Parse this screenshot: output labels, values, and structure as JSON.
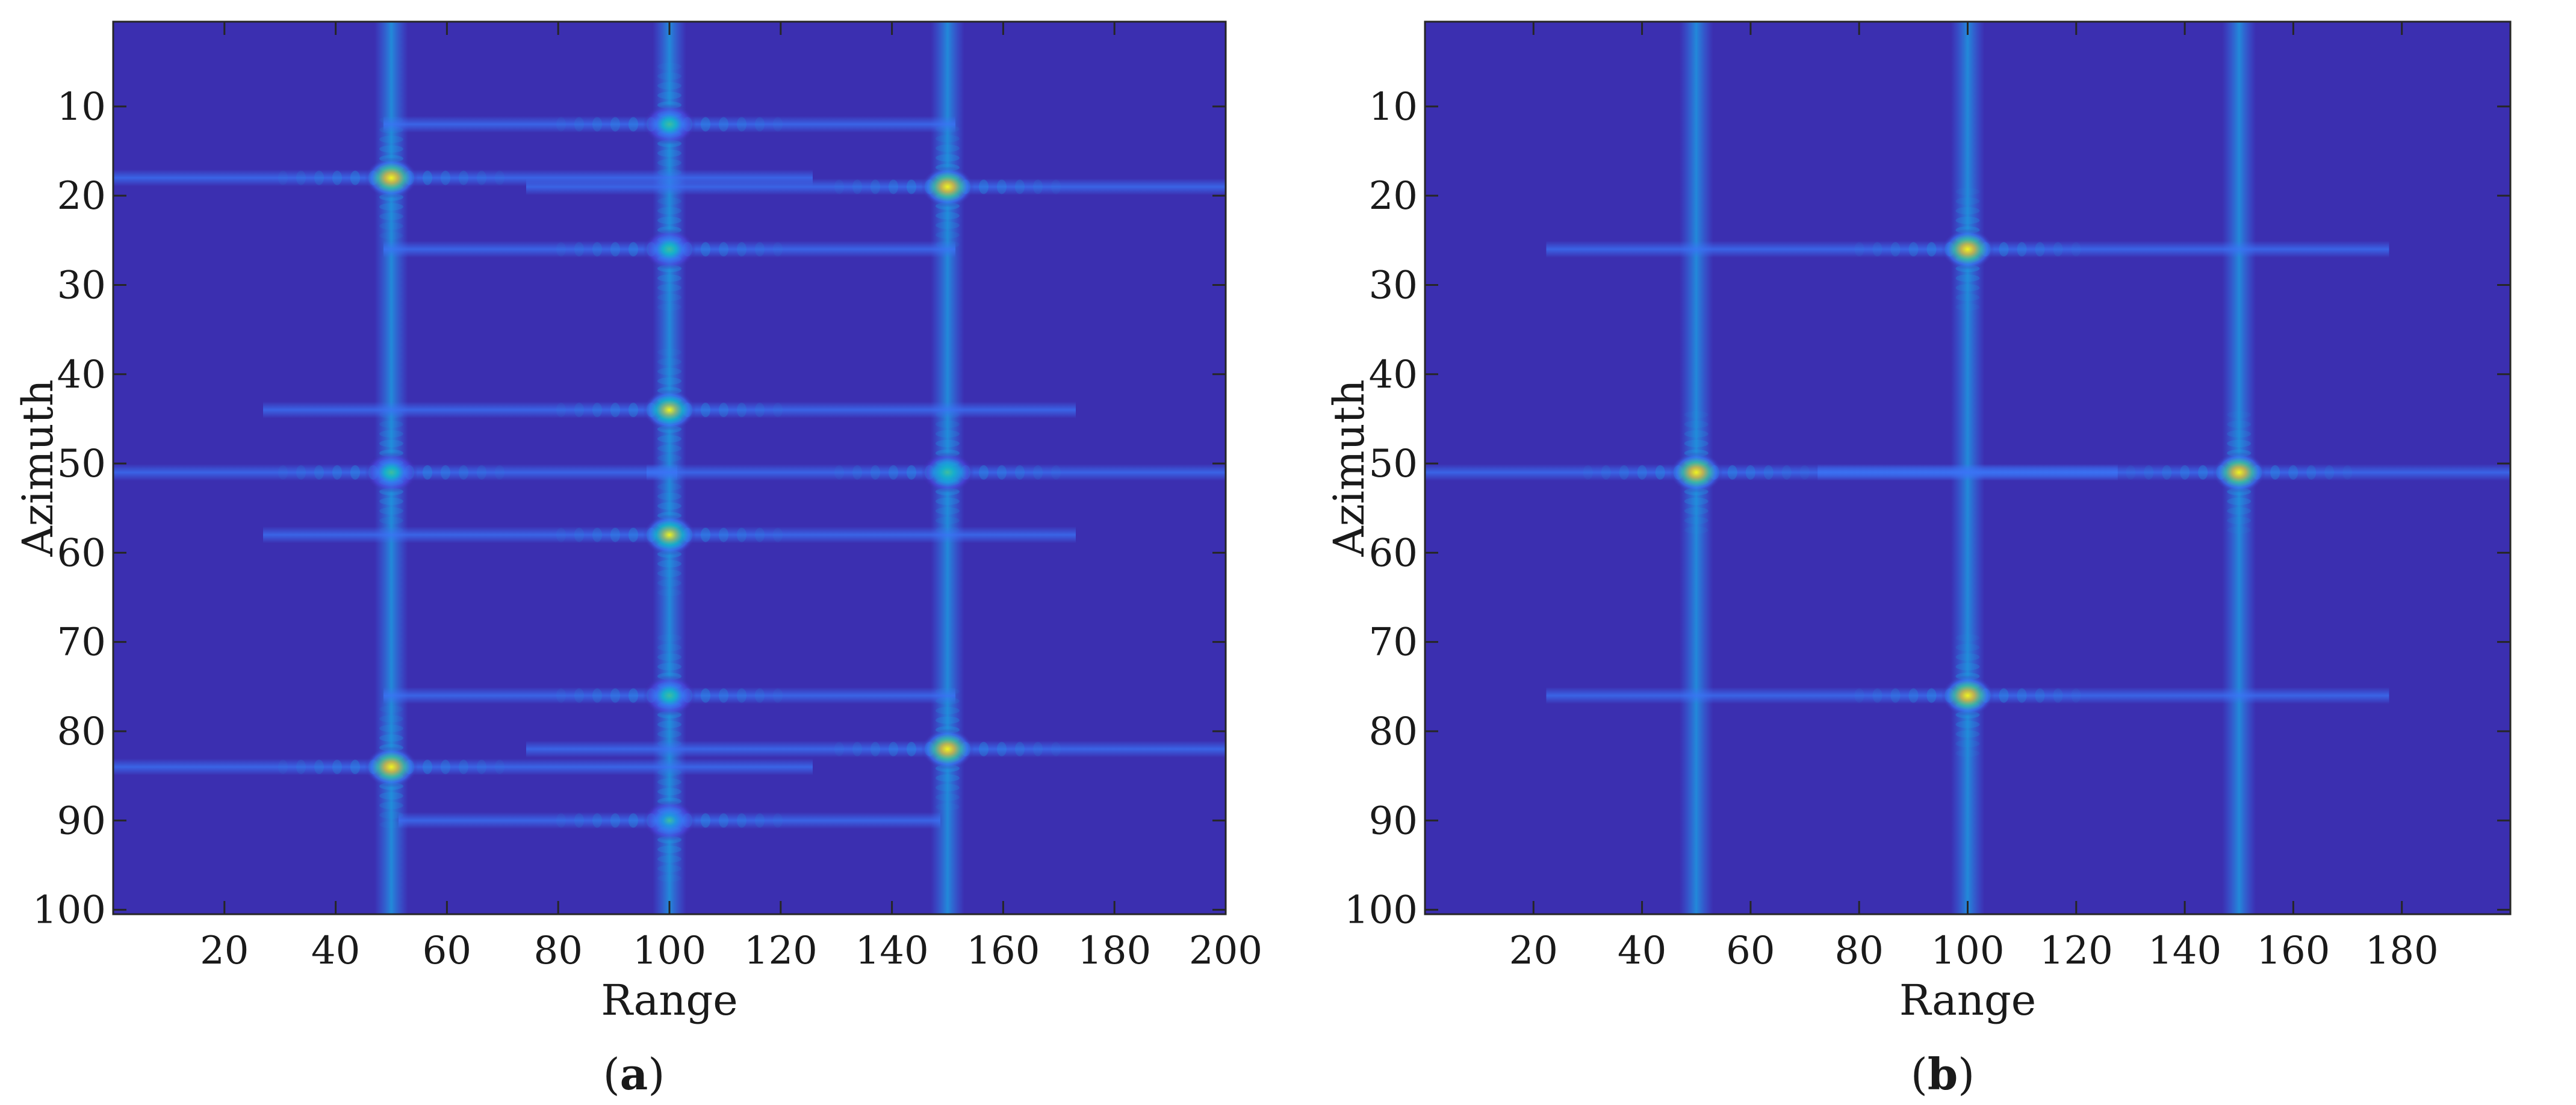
{
  "colors": {
    "background": "#3b2fb0",
    "colormap": [
      "#3e26a8",
      "#4a46e0",
      "#3a74f6",
      "#1d9ae0",
      "#11b8c8",
      "#3ec19b",
      "#92bf6a",
      "#d2bb3d",
      "#fbc731",
      "#f9fb14"
    ]
  },
  "chart_data": [
    {
      "type": "heatmap",
      "panel_label": "a",
      "xlabel": "Range",
      "ylabel": "Azimuth",
      "xlim": [
        0,
        200
      ],
      "ylim": [
        1,
        100
      ],
      "y_inverted": true,
      "x_ticks": [
        20,
        40,
        60,
        80,
        100,
        120,
        140,
        160,
        180,
        200
      ],
      "y_ticks": [
        10,
        20,
        30,
        40,
        50,
        60,
        70,
        80,
        90,
        100
      ],
      "point_targets": [
        {
          "range": 50,
          "azimuth": 18,
          "intensity": 1.0
        },
        {
          "range": 50,
          "azimuth": 51,
          "intensity": 0.55
        },
        {
          "range": 50,
          "azimuth": 84,
          "intensity": 1.0
        },
        {
          "range": 100,
          "azimuth": 12,
          "intensity": 0.55
        },
        {
          "range": 100,
          "azimuth": 26,
          "intensity": 0.55
        },
        {
          "range": 100,
          "azimuth": 44,
          "intensity": 0.95
        },
        {
          "range": 100,
          "azimuth": 58,
          "intensity": 0.95
        },
        {
          "range": 100,
          "azimuth": 76,
          "intensity": 0.55
        },
        {
          "range": 100,
          "azimuth": 90,
          "intensity": 0.5
        },
        {
          "range": 150,
          "azimuth": 19,
          "intensity": 1.0
        },
        {
          "range": 150,
          "azimuth": 51,
          "intensity": 0.6
        },
        {
          "range": 150,
          "azimuth": 82,
          "intensity": 1.0
        }
      ]
    },
    {
      "type": "heatmap",
      "panel_label": "b",
      "xlabel": "Range",
      "ylabel": "Azimuth",
      "xlim": [
        0,
        200
      ],
      "ylim": [
        1,
        100
      ],
      "y_inverted": true,
      "x_ticks": [
        20,
        40,
        60,
        80,
        100,
        120,
        140,
        160,
        180
      ],
      "y_ticks": [
        10,
        20,
        30,
        40,
        50,
        60,
        70,
        80,
        90,
        100
      ],
      "point_targets": [
        {
          "range": 50,
          "azimuth": 51,
          "intensity": 1.0
        },
        {
          "range": 100,
          "azimuth": 26,
          "intensity": 1.0
        },
        {
          "range": 100,
          "azimuth": 76,
          "intensity": 1.0
        },
        {
          "range": 150,
          "azimuth": 51,
          "intensity": 1.0
        }
      ]
    }
  ]
}
